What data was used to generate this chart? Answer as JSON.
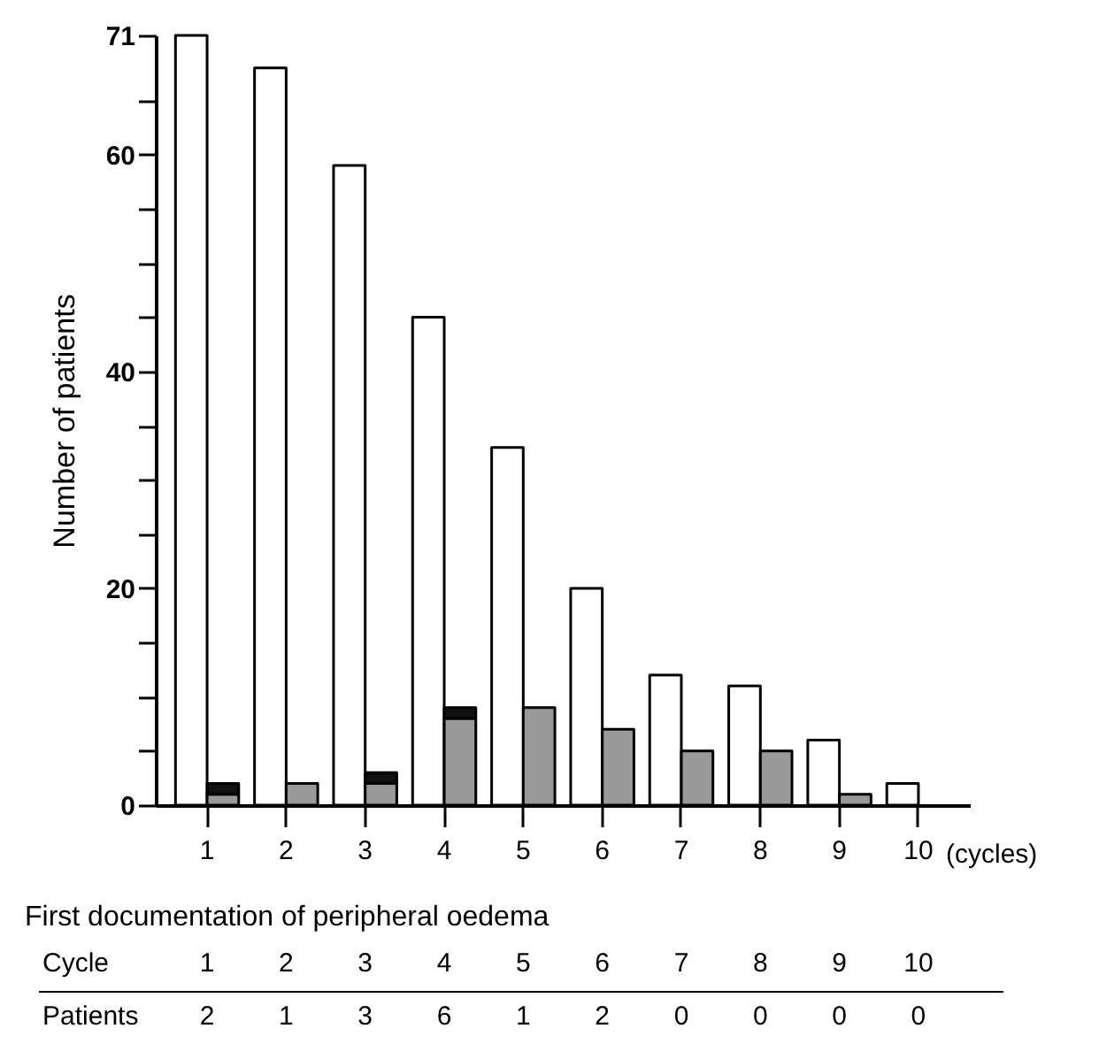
{
  "chart_data": {
    "type": "bar",
    "ylabel": "Number of patients",
    "xlabel": "(cycles)",
    "categories": [
      "1",
      "2",
      "3",
      "4",
      "5",
      "6",
      "7",
      "8",
      "9",
      "10"
    ],
    "series": [
      {
        "color": "#ffffff",
        "values": [
          71,
          68,
          59,
          45,
          33,
          20,
          12,
          11,
          6,
          2
        ]
      },
      {
        "color": "#999999",
        "values": [
          1,
          2,
          2,
          8,
          9,
          7,
          5,
          5,
          1,
          null
        ]
      },
      {
        "color": "#111111",
        "values": [
          1,
          null,
          1,
          1,
          null,
          null,
          null,
          null,
          null,
          null
        ],
        "base": [
          1,
          null,
          2,
          8,
          null,
          null,
          null,
          null,
          null,
          null
        ]
      }
    ],
    "ylim": [
      0,
      71
    ],
    "yticks": [
      0,
      {
        "value": 5,
        "label": null
      },
      {
        "value": 10,
        "label": null
      },
      {
        "value": 15,
        "label": null
      },
      20,
      {
        "value": 25,
        "label": null
      },
      {
        "value": 30,
        "label": null
      },
      {
        "value": 35,
        "label": null
      },
      40,
      {
        "value": 45,
        "label": null
      },
      {
        "value": 50,
        "label": null
      },
      {
        "value": 55,
        "label": null
      },
      60,
      {
        "value": 65,
        "label": null
      },
      71
    ],
    "grid": false,
    "annotations": [
      "First documentation of peripheral oedema",
      "Cycle",
      "1",
      "2",
      "3",
      "4",
      "5",
      "6",
      "7",
      "8",
      "9",
      "10",
      "Patients",
      "2",
      "1",
      "3",
      "6",
      "1",
      "2",
      "0",
      "0",
      "0",
      "0"
    ]
  }
}
